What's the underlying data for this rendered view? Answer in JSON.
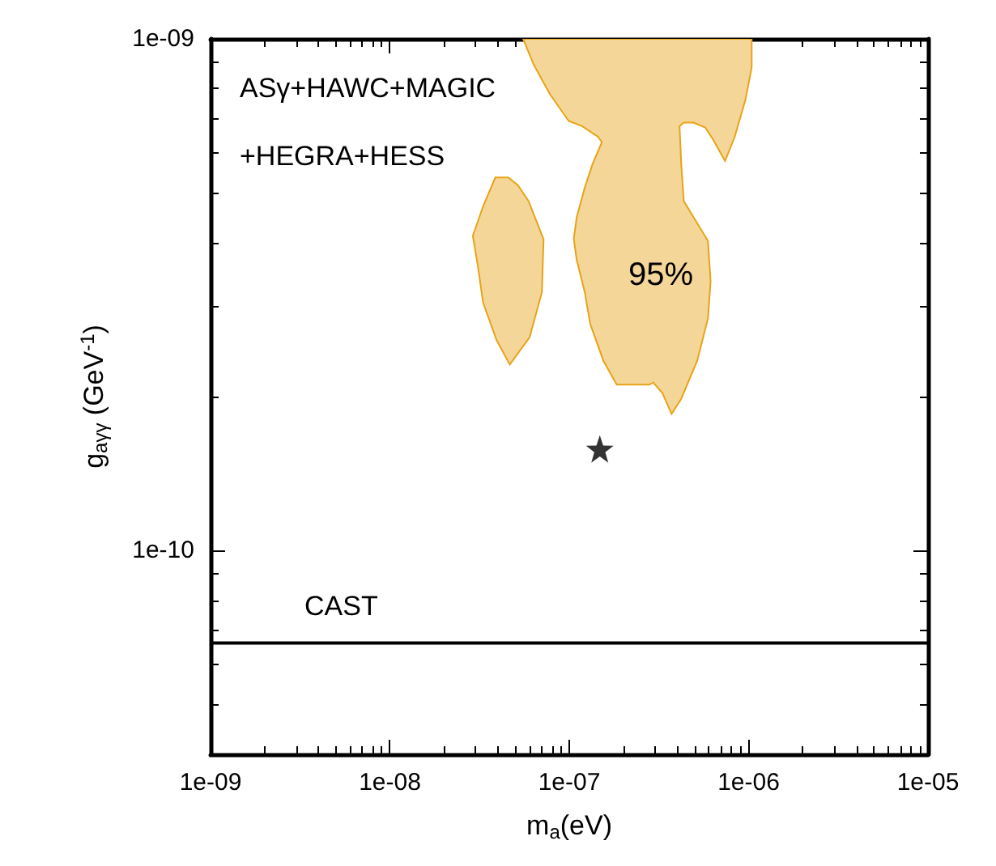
{
  "chart_data": {
    "type": "scatter",
    "xlabel": "m$_{a}$(eV)",
    "ylabel": "g$_{aγγ}$ (GeV$^{-1}$)",
    "log": "xy",
    "grid": false,
    "xlim": [
      1e-09,
      1e-05
    ],
    "xticks": [
      {
        "value": 1e-09,
        "label": "1e-09"
      },
      {
        "value": 1e-08,
        "label": "1e-08"
      },
      {
        "value": 1e-07,
        "label": "1e-07"
      },
      {
        "value": 1e-06,
        "label": "1e-06"
      },
      {
        "value": 1e-05,
        "label": "1e-05"
      }
    ],
    "ylim": [
      4e-11,
      1e-09
    ],
    "yticks": [
      {
        "value": 1e-10,
        "label": "1e-10"
      },
      {
        "value": 1e-09,
        "label": "1e-09"
      }
    ],
    "series": [
      {
        "type": "area",
        "color": "#f5d699",
        "x": [
          3.87e-08,
          4.57e-08,
          5.17e-08,
          5.93e-08,
          7.19e-08,
          7.04e-08,
          6.01e-08,
          4.66e-08,
          3.93e-08,
          3.31e-08,
          3.09e-08,
          2.9e-08,
          3.31e-08
        ],
        "values": [
          5.36e-10,
          5.36e-10,
          5.18e-10,
          4.82e-10,
          4.06e-10,
          3.2e-10,
          2.61e-10,
          2.31e-10,
          2.58e-10,
          3.05e-10,
          3.61e-10,
          4.12e-10,
          4.71e-10
        ]
      },
      {
        "type": "area",
        "color": "#f5d699",
        "x": [
          5.53e-08,
          6.35e-08,
          7.81e-08,
          9.93e-08,
          1.18e-07,
          1.45e-07,
          1.52e-07,
          1.35e-07,
          1.22e-07,
          1.1e-07,
          1.06e-07,
          1.1e-07,
          1.22e-07,
          1.31e-07,
          1.55e-07,
          1.84e-07,
          2.79e-07,
          2.94e-07,
          3.31e-07,
          3.72e-07,
          4.21e-07,
          5.17e-07,
          5.93e-07,
          6.14e-07,
          5.93e-07,
          4.35e-07,
          4.21e-07,
          4.12e-07,
          4.35e-07,
          4.93e-07,
          5.73e-07,
          6.35e-07,
          7.39e-07,
          8.36e-07,
          9.6e-07,
          1.04e-06,
          1.04e-06
        ],
        "values": [
          1e-09,
          8.89e-10,
          7.79e-10,
          6.91e-10,
          6.75e-10,
          6.43e-10,
          6.28e-10,
          5.7e-10,
          5.12e-10,
          4.48e-10,
          4.07e-10,
          3.7e-10,
          3.2e-10,
          2.77e-10,
          2.35e-10,
          2.11e-10,
          2.11e-10,
          2.13e-10,
          2.03e-10,
          1.85e-10,
          1.98e-10,
          2.35e-10,
          2.84e-10,
          3.36e-10,
          4.03e-10,
          4.82e-10,
          5.7e-10,
          6.75e-10,
          6.86e-10,
          6.86e-10,
          6.71e-10,
          6.35e-10,
          5.77e-10,
          6.43e-10,
          7.6e-10,
          8.79e-10,
          1e-09
        ]
      },
      {
        "color": "#000000",
        "marker": "star",
        "x": [
          1.48e-07
        ],
        "values": [
          1.58e-10
        ]
      }
    ],
    "ref_lines": [
      {
        "axis": "y",
        "value": 6.6e-11,
        "label": "CAST",
        "color": "#000000",
        "line_style": "solid"
      }
    ],
    "annotations": [
      "ASγ+HAWC+MAGIC",
      "+HEGRA+HESS",
      "95%"
    ]
  }
}
